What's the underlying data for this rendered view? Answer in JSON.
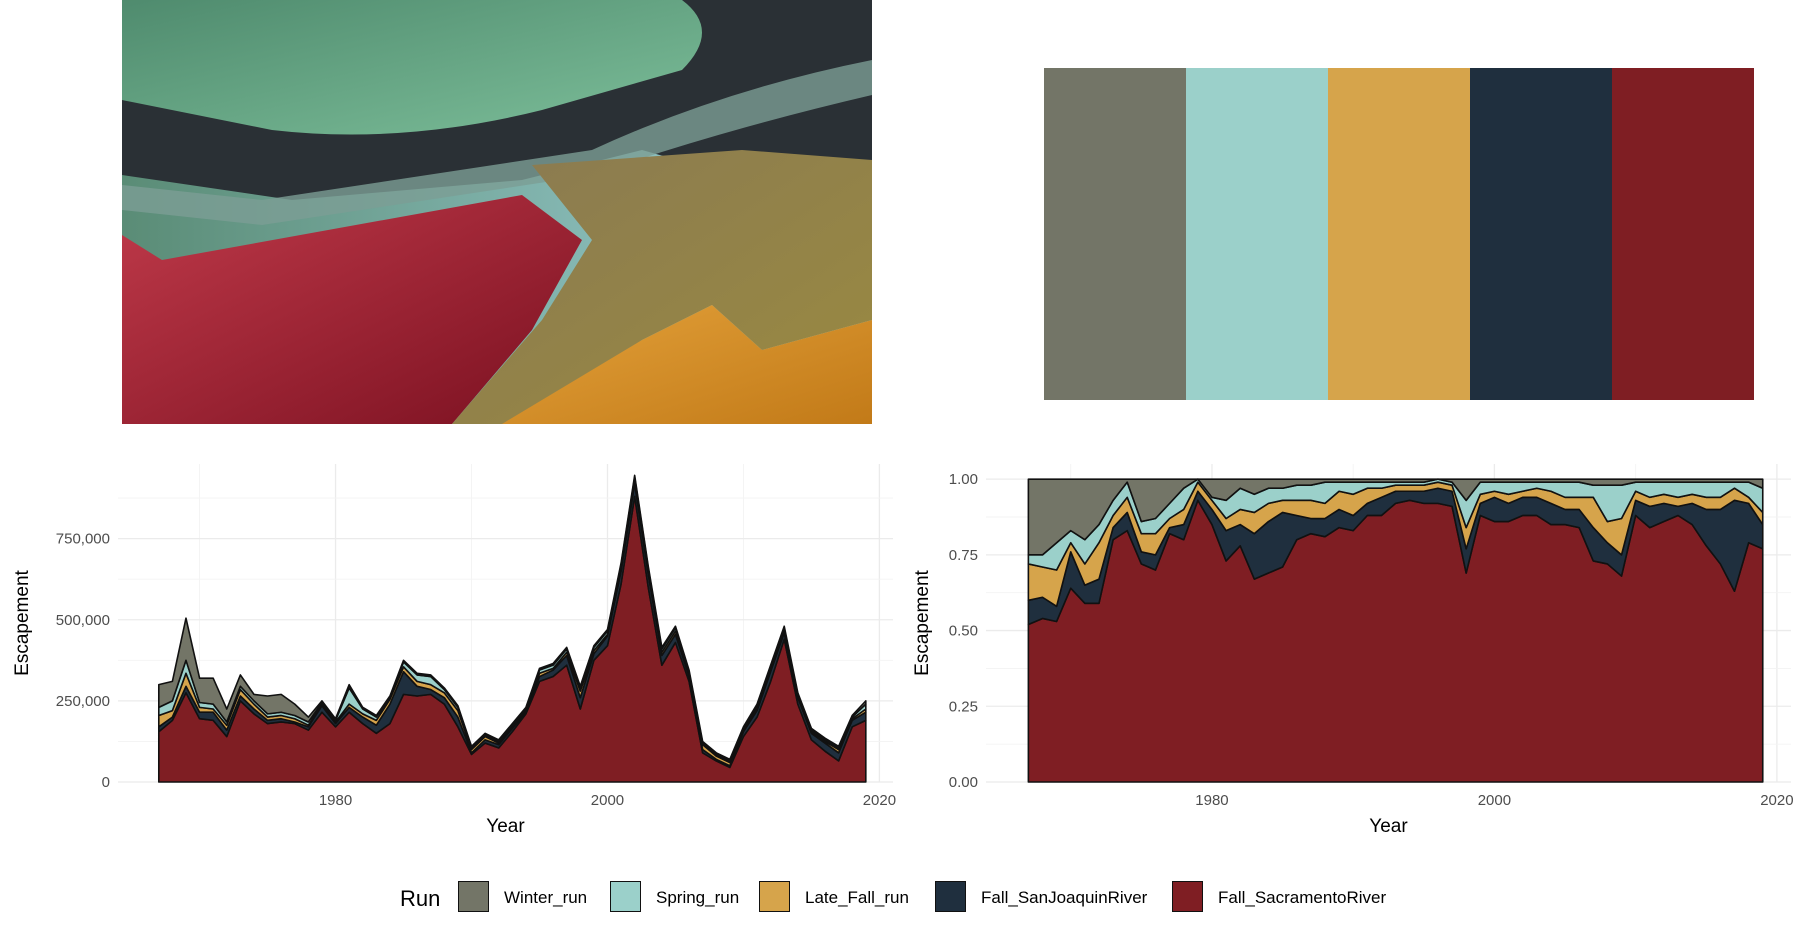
{
  "photo": {
    "description_icon": "salt-ponds-aerial-photo"
  },
  "palette": {
    "swatches": [
      "#737567",
      "#9bd0ca",
      "#d6a44b",
      "#1f2f3e",
      "#7f1e23"
    ]
  },
  "legend": {
    "title": "Run",
    "items": [
      {
        "label": "Winter_run",
        "color": "#737567"
      },
      {
        "label": "Spring_run",
        "color": "#9bd0ca"
      },
      {
        "label": "Late_Fall_run",
        "color": "#d6a44b"
      },
      {
        "label": "Fall_SanJoaquinRiver",
        "color": "#1f2f3e"
      },
      {
        "label": "Fall_SacramentoRiver",
        "color": "#7f1e23"
      }
    ]
  },
  "chart_data": [
    {
      "type": "area",
      "stacked": true,
      "xlabel": "Year",
      "ylabel": "Escapement",
      "xticks": [
        1980,
        2000,
        2020
      ],
      "yticks": [
        0,
        250000,
        500000,
        750000
      ],
      "ytick_labels": [
        "0",
        "250,000",
        "500,000",
        "750,000"
      ],
      "xlim": [
        1964,
        2021
      ],
      "ylim": [
        0,
        980000
      ],
      "grid": true,
      "legend": "bottom",
      "x": [
        1967,
        1968,
        1969,
        1970,
        1971,
        1972,
        1973,
        1974,
        1975,
        1976,
        1977,
        1978,
        1979,
        1980,
        1981,
        1982,
        1983,
        1984,
        1985,
        1986,
        1987,
        1988,
        1989,
        1990,
        1991,
        1992,
        1993,
        1994,
        1995,
        1996,
        1997,
        1998,
        1999,
        2000,
        2001,
        2002,
        2003,
        2004,
        2005,
        2006,
        2007,
        2008,
        2009,
        2010,
        2011,
        2012,
        2013,
        2014,
        2015,
        2016,
        2017,
        2018,
        2019
      ],
      "series": [
        {
          "name": "Fall_SacramentoRiver",
          "values": [
            155000,
            190000,
            275000,
            195000,
            190000,
            140000,
            250000,
            210000,
            180000,
            185000,
            180000,
            160000,
            215000,
            170000,
            215000,
            180000,
            150000,
            180000,
            270000,
            265000,
            270000,
            240000,
            170000,
            85000,
            120000,
            105000,
            155000,
            210000,
            310000,
            325000,
            360000,
            225000,
            375000,
            420000,
            610000,
            880000,
            600000,
            360000,
            430000,
            310000,
            90000,
            65000,
            45000,
            140000,
            200000,
            310000,
            440000,
            240000,
            130000,
            95000,
            65000,
            170000,
            190000
          ]
        },
        {
          "name": "Fall_SanJoaquinRiver",
          "values": [
            15000,
            10000,
            20000,
            20000,
            25000,
            20000,
            15000,
            15000,
            10000,
            10000,
            5000,
            10000,
            20000,
            10000,
            15000,
            20000,
            25000,
            60000,
            70000,
            30000,
            15000,
            20000,
            30000,
            5000,
            10000,
            10000,
            10000,
            5000,
            15000,
            20000,
            30000,
            35000,
            20000,
            30000,
            40000,
            40000,
            40000,
            30000,
            25000,
            15000,
            10000,
            5000,
            5000,
            15000,
            20000,
            30000,
            20000,
            20000,
            20000,
            25000,
            25000,
            20000,
            25000
          ]
        },
        {
          "name": "Late_Fall_run",
          "values": [
            35000,
            20000,
            40000,
            15000,
            10000,
            15000,
            20000,
            15000,
            10000,
            10000,
            10000,
            5000,
            5000,
            5000,
            10000,
            10000,
            15000,
            15000,
            15000,
            15000,
            15000,
            15000,
            20000,
            10000,
            10000,
            5000,
            5000,
            5000,
            10000,
            5000,
            10000,
            20000,
            10000,
            5000,
            5000,
            10000,
            10000,
            10000,
            10000,
            10000,
            15000,
            10000,
            10000,
            5000,
            5000,
            5000,
            5000,
            5000,
            5000,
            5000,
            10000,
            5000,
            10000
          ]
        },
        {
          "name": "Spring_run",
          "values": [
            25000,
            30000,
            40000,
            15000,
            15000,
            10000,
            10000,
            10000,
            10000,
            10000,
            10000,
            10000,
            5000,
            5000,
            50000,
            15000,
            10000,
            5000,
            15000,
            20000,
            25000,
            10000,
            10000,
            5000,
            5000,
            5000,
            5000,
            5000,
            10000,
            10000,
            10000,
            10000,
            10000,
            10000,
            15000,
            10000,
            10000,
            10000,
            10000,
            5000,
            5000,
            5000,
            5000,
            5000,
            10000,
            10000,
            10000,
            5000,
            5000,
            5000,
            5000,
            5000,
            15000
          ]
        },
        {
          "name": "Winter_run",
          "values": [
            70000,
            60000,
            130000,
            75000,
            80000,
            40000,
            35000,
            20000,
            55000,
            55000,
            35000,
            15000,
            5000,
            5000,
            10000,
            5000,
            5000,
            5000,
            5000,
            5000,
            5000,
            5000,
            5000,
            5000,
            5000,
            5000,
            5000,
            5000,
            5000,
            5000,
            5000,
            5000,
            5000,
            5000,
            5000,
            5000,
            5000,
            5000,
            5000,
            5000,
            5000,
            5000,
            5000,
            5000,
            5000,
            5000,
            5000,
            5000,
            5000,
            5000,
            5000,
            5000,
            10000
          ]
        }
      ]
    },
    {
      "type": "area",
      "stacked": true,
      "normalized": true,
      "xlabel": "Year",
      "ylabel": "Escapement",
      "xticks": [
        1980,
        2000,
        2020
      ],
      "yticks": [
        0,
        0.25,
        0.5,
        0.75,
        1
      ],
      "ytick_labels": [
        "0.00",
        "0.25",
        "0.50",
        "0.75",
        "1.00"
      ],
      "xlim": [
        1964,
        2021
      ],
      "ylim": [
        0,
        1.05
      ],
      "grid": true,
      "legend": "bottom",
      "x": [
        1967,
        1968,
        1969,
        1970,
        1971,
        1972,
        1973,
        1974,
        1975,
        1976,
        1977,
        1978,
        1979,
        1980,
        1981,
        1982,
        1983,
        1984,
        1985,
        1986,
        1987,
        1988,
        1989,
        1990,
        1991,
        1992,
        1993,
        1994,
        1995,
        1996,
        1997,
        1998,
        1999,
        2000,
        2001,
        2002,
        2003,
        2004,
        2005,
        2006,
        2007,
        2008,
        2009,
        2010,
        2011,
        2012,
        2013,
        2014,
        2015,
        2016,
        2017,
        2018,
        2019
      ],
      "series": [
        {
          "name": "Fall_SacramentoRiver",
          "values": [
            0.52,
            0.54,
            0.53,
            0.64,
            0.59,
            0.59,
            0.8,
            0.83,
            0.72,
            0.7,
            0.82,
            0.8,
            0.93,
            0.85,
            0.73,
            0.78,
            0.67,
            0.69,
            0.71,
            0.8,
            0.82,
            0.81,
            0.84,
            0.83,
            0.88,
            0.88,
            0.92,
            0.93,
            0.92,
            0.92,
            0.91,
            0.69,
            0.88,
            0.86,
            0.86,
            0.88,
            0.88,
            0.85,
            0.85,
            0.84,
            0.73,
            0.72,
            0.68,
            0.88,
            0.84,
            0.86,
            0.88,
            0.85,
            0.78,
            0.72,
            0.63,
            0.79,
            0.77
          ]
        },
        {
          "name": "Fall_SanJoaquinRiver",
          "values": [
            0.08,
            0.07,
            0.05,
            0.12,
            0.06,
            0.08,
            0.04,
            0.06,
            0.04,
            0.05,
            0.02,
            0.05,
            0.03,
            0.05,
            0.1,
            0.07,
            0.15,
            0.17,
            0.18,
            0.08,
            0.05,
            0.06,
            0.06,
            0.05,
            0.04,
            0.06,
            0.04,
            0.03,
            0.04,
            0.05,
            0.05,
            0.08,
            0.04,
            0.08,
            0.06,
            0.06,
            0.06,
            0.07,
            0.05,
            0.06,
            0.11,
            0.07,
            0.07,
            0.05,
            0.07,
            0.06,
            0.03,
            0.07,
            0.12,
            0.18,
            0.3,
            0.13,
            0.08
          ]
        },
        {
          "name": "Late_Fall_run",
          "values": [
            0.12,
            0.1,
            0.12,
            0.03,
            0.07,
            0.12,
            0.04,
            0.05,
            0.06,
            0.07,
            0.03,
            0.05,
            0.03,
            0.03,
            0.04,
            0.05,
            0.07,
            0.06,
            0.04,
            0.05,
            0.06,
            0.05,
            0.06,
            0.07,
            0.05,
            0.03,
            0.02,
            0.02,
            0.02,
            0.02,
            0.02,
            0.07,
            0.03,
            0.02,
            0.03,
            0.02,
            0.03,
            0.04,
            0.04,
            0.04,
            0.1,
            0.07,
            0.12,
            0.03,
            0.03,
            0.03,
            0.03,
            0.03,
            0.04,
            0.04,
            0.04,
            0.02,
            0.04
          ]
        },
        {
          "name": "Spring_run",
          "values": [
            0.03,
            0.04,
            0.09,
            0.04,
            0.08,
            0.06,
            0.05,
            0.05,
            0.04,
            0.05,
            0.05,
            0.07,
            0.01,
            0.01,
            0.06,
            0.07,
            0.06,
            0.05,
            0.04,
            0.05,
            0.05,
            0.07,
            0.03,
            0.04,
            0.02,
            0.02,
            0.01,
            0.01,
            0.01,
            0.01,
            0.01,
            0.09,
            0.04,
            0.03,
            0.04,
            0.03,
            0.02,
            0.03,
            0.05,
            0.05,
            0.04,
            0.12,
            0.11,
            0.03,
            0.05,
            0.04,
            0.05,
            0.04,
            0.05,
            0.05,
            0.02,
            0.05,
            0.08
          ]
        },
        {
          "name": "Winter_run",
          "values": [
            0.25,
            0.25,
            0.21,
            0.17,
            0.2,
            0.15,
            0.07,
            0.01,
            0.14,
            0.13,
            0.08,
            0.03,
            0.0,
            0.06,
            0.07,
            0.03,
            0.05,
            0.03,
            0.03,
            0.02,
            0.02,
            0.01,
            0.01,
            0.01,
            0.01,
            0.01,
            0.01,
            0.01,
            0.01,
            0.0,
            0.01,
            0.07,
            0.01,
            0.01,
            0.01,
            0.01,
            0.01,
            0.01,
            0.01,
            0.01,
            0.02,
            0.02,
            0.02,
            0.01,
            0.01,
            0.01,
            0.01,
            0.01,
            0.01,
            0.01,
            0.01,
            0.01,
            0.03
          ]
        }
      ]
    }
  ]
}
